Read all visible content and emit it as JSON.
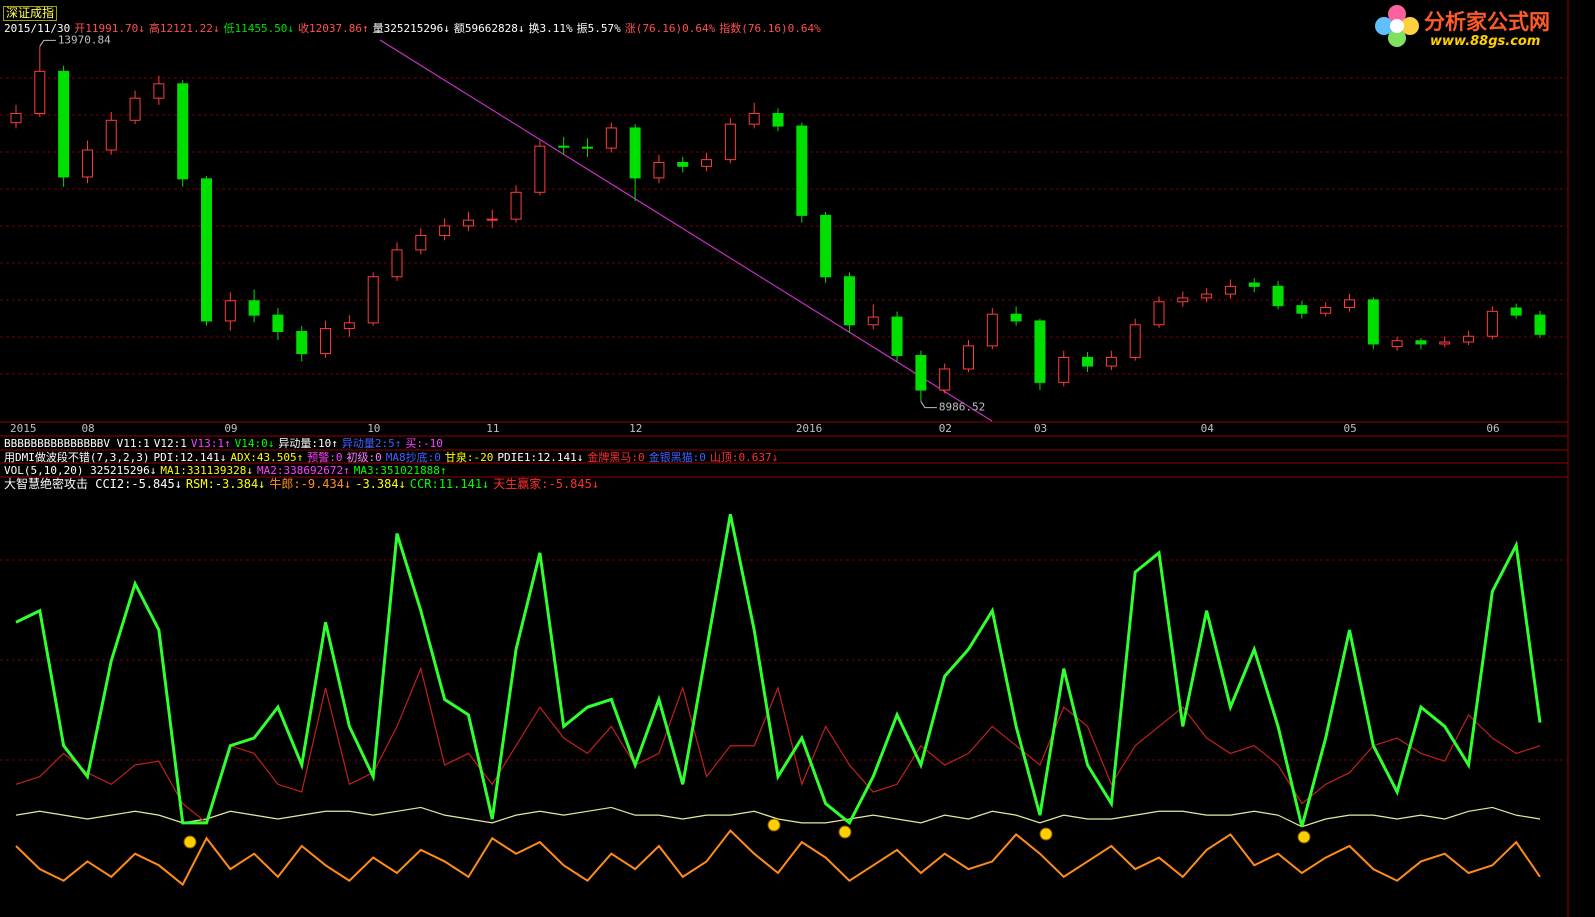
{
  "header": {
    "title": "深证成指",
    "date": "2015/11/30",
    "info": [
      {
        "text": "开11991.70↓",
        "color": "#ff5050"
      },
      {
        "text": "高12121.22↓",
        "color": "#ff5050"
      },
      {
        "text": "低11455.50↓",
        "color": "#00e000"
      },
      {
        "text": "收12037.86↑",
        "color": "#ff5050"
      },
      {
        "text": "量325215296↓",
        "color": "#ffffff"
      },
      {
        "text": "额59662828↓",
        "color": "#ffffff"
      },
      {
        "text": "换3.11%",
        "color": "#ffffff"
      },
      {
        "text": "振5.57%",
        "color": "#ffffff"
      },
      {
        "text": "涨(76.16)0.64%",
        "color": "#ff5050"
      },
      {
        "text": "指数(76.16)0.64%",
        "color": "#ff5050"
      }
    ]
  },
  "logo": {
    "name": "分析家公式网",
    "url": "www.88gs.com"
  },
  "indicator_rows": [
    [
      {
        "text": "BBBBBBBBBBBBBBBV V11:1",
        "color": "#ffffff"
      },
      {
        "text": "V12:1",
        "color": "#ffffff"
      },
      {
        "text": "V13:1↑",
        "color": "#ff40ff"
      },
      {
        "text": "V14:0↓",
        "color": "#00ff00"
      },
      {
        "text": "异动量:10↑",
        "color": "#ffffff"
      },
      {
        "text": "异动量2:5↑",
        "color": "#4060ff"
      },
      {
        "text": "买:-10",
        "color": "#ff40ff"
      }
    ],
    [
      {
        "text": "用DMI做波段不错(7,3,2,3)",
        "color": "#ffffff"
      },
      {
        "text": "PDI:12.141↓",
        "color": "#ffffff"
      },
      {
        "text": "ADX:43.505↑",
        "color": "#ffff00"
      },
      {
        "text": "预警:0",
        "color": "#ff40ff"
      },
      {
        "text": "初级:0",
        "color": "#ff80ff"
      },
      {
        "text": "MA8抄底:0",
        "color": "#4060ff"
      },
      {
        "text": "甘泉:-20",
        "color": "#ffff00"
      },
      {
        "text": "PDIE1:12.141↓",
        "color": "#ffffff"
      },
      {
        "text": "金牌黑马:0",
        "color": "#ff3030"
      },
      {
        "text": "金银黑猫:0",
        "color": "#4060ff"
      },
      {
        "text": "山顶:0.637↓",
        "color": "#ff3030"
      }
    ],
    [
      {
        "text": "VOL(5,10,20) 325215296↓",
        "color": "#ffffff"
      },
      {
        "text": "MA1:331139328↓",
        "color": "#ffff00"
      },
      {
        "text": "MA2:338692672↑",
        "color": "#ff40ff"
      },
      {
        "text": "MA3:351021888↑",
        "color": "#00ff00"
      }
    ],
    [
      {
        "text": "大智慧绝密攻击 CCI2:-5.845↓",
        "color": "#ffffff"
      },
      {
        "text": "RSM:-3.384↓",
        "color": "#ffff00"
      },
      {
        "text": "牛郎:-9.434↓",
        "color": "#ff9020"
      },
      {
        "text": "-3.384↓",
        "color": "#ffff00"
      },
      {
        "text": "CCR:11.141↓",
        "color": "#00ff00"
      },
      {
        "text": "天生赢家:-5.845↓",
        "color": "#ff3030"
      }
    ]
  ],
  "chart_data": [
    {
      "type": "candlestick",
      "up_color": "#ff3c3c",
      "down_color": "#00e000",
      "ylim": [
        8700,
        14200
      ],
      "categories": [
        "2015",
        null,
        null,
        "08",
        null,
        null,
        null,
        null,
        null,
        "09",
        null,
        null,
        null,
        null,
        null,
        "10",
        null,
        null,
        null,
        null,
        "11",
        null,
        null,
        null,
        null,
        null,
        "12",
        null,
        null,
        null,
        null,
        null,
        null,
        "2016",
        null,
        null,
        null,
        null,
        null,
        "02",
        null,
        null,
        null,
        "03",
        null,
        null,
        null,
        null,
        null,
        null,
        "04",
        null,
        null,
        null,
        null,
        null,
        "05",
        null,
        null,
        null,
        null,
        null,
        "06",
        null,
        null
      ],
      "open": [
        12900,
        13028,
        13620,
        12138,
        12516,
        12933,
        13243,
        13445,
        12112,
        10118,
        10401,
        10199,
        9970,
        9660,
        10011,
        10091,
        10738,
        11115,
        11317,
        11451,
        11532,
        11546,
        11923,
        12570,
        12556,
        12543,
        12826,
        12125,
        12341,
        12287,
        12381,
        12879,
        13028,
        12852,
        11599,
        10738,
        10064,
        10172,
        9633,
        9148,
        9444,
        9768,
        10212,
        10118,
        9256,
        9606,
        9485,
        9606,
        10064,
        10387,
        10441,
        10495,
        10650,
        10603,
        10333,
        10226,
        10306,
        10414,
        9760,
        9840,
        9795,
        9822,
        9903,
        10300,
        10200
      ],
      "high": [
        13150,
        13970.84,
        13700,
        12650,
        13050,
        13350,
        13560,
        13500,
        12150,
        10520,
        10560,
        10300,
        10050,
        10120,
        10200,
        10800,
        11220,
        11420,
        11560,
        11650,
        11680,
        12020,
        12650,
        12700,
        12680,
        12900,
        12880,
        12450,
        12420,
        12480,
        12960,
        13180,
        13100,
        12900,
        11650,
        10800,
        10350,
        10250,
        9700,
        9520,
        9850,
        10300,
        10320,
        10150,
        9700,
        9680,
        9700,
        10150,
        10460,
        10530,
        10580,
        10700,
        10720,
        10680,
        10400,
        10380,
        10500,
        10450,
        9900,
        9880,
        9900,
        9980,
        10320,
        10360,
        10260
      ],
      "low": [
        12820,
        12980,
        12000,
        12050,
        12450,
        12880,
        13150,
        12000,
        10050,
        9980,
        10100,
        9850,
        9550,
        9600,
        9900,
        10050,
        10680,
        11050,
        11250,
        11380,
        11420,
        11500,
        11880,
        12450,
        12420,
        12480,
        11800,
        12050,
        12200,
        12220,
        12330,
        12820,
        12780,
        11500,
        10650,
        9950,
        10000,
        9550,
        8986.52,
        9100,
        9400,
        9720,
        10050,
        9150,
        9200,
        9400,
        9430,
        9560,
        10020,
        10320,
        10380,
        10430,
        10520,
        10280,
        10150,
        10180,
        10250,
        9720,
        9700,
        9720,
        9750,
        9780,
        9860,
        10150,
        9880
      ],
      "close": [
        13028,
        13620,
        12138,
        12516,
        12933,
        13243,
        13445,
        12112,
        10118,
        10401,
        10199,
        9970,
        9660,
        10011,
        10091,
        10738,
        11115,
        11317,
        11451,
        11532,
        11546,
        11923,
        12570,
        12556,
        12543,
        12826,
        12125,
        12341,
        12287,
        12381,
        12879,
        13028,
        12852,
        11599,
        10738,
        10064,
        10172,
        9633,
        9148,
        9444,
        9768,
        10212,
        10118,
        9256,
        9606,
        9485,
        9606,
        10064,
        10387,
        10441,
        10495,
        10603,
        10603,
        10333,
        10226,
        10306,
        10414,
        9795,
        9840,
        9795,
        9822,
        9903,
        10253,
        10200,
        9930
      ],
      "annotations": [
        {
          "value": 13970.84,
          "label": "13970.84"
        },
        {
          "value": 8986.52,
          "label": "8986.52"
        }
      ]
    },
    {
      "type": "line",
      "ylim": [
        0,
        105
      ],
      "series": [
        {
          "color": "#30ff30",
          "values": [
            72,
            75,
            40,
            32,
            62,
            82,
            70,
            20,
            20,
            40,
            42,
            50,
            35,
            72,
            45,
            32,
            95,
            75,
            52,
            48,
            21,
            65,
            90,
            45,
            50,
            52,
            35,
            52,
            30,
            65,
            100,
            70,
            32,
            42,
            25,
            20,
            32,
            48,
            35,
            58,
            65,
            75,
            45,
            22,
            60,
            35,
            25,
            85,
            90,
            45,
            75,
            50,
            65,
            45,
            19,
            42,
            70,
            40,
            28,
            50,
            45,
            35,
            80,
            92,
            46
          ]
        },
        {
          "color": "#c02020",
          "values": [
            30,
            32,
            38,
            33,
            30,
            35,
            36,
            25,
            20,
            40,
            38,
            30,
            28,
            55,
            30,
            33,
            45,
            60,
            35,
            38,
            30,
            40,
            50,
            42,
            38,
            45,
            35,
            38,
            55,
            32,
            40,
            40,
            55,
            30,
            45,
            35,
            28,
            30,
            40,
            35,
            38,
            45,
            40,
            35,
            50,
            45,
            30,
            40,
            45,
            50,
            42,
            38,
            40,
            35,
            25,
            30,
            33,
            40,
            42,
            38,
            36,
            48,
            42,
            38,
            40
          ]
        },
        {
          "color": "#e8e8a0",
          "values": [
            22,
            23,
            22,
            21,
            22,
            23,
            22,
            20,
            21,
            23,
            22,
            21,
            22,
            23,
            23,
            22,
            23,
            24,
            22,
            21,
            20,
            22,
            23,
            22,
            23,
            24,
            22,
            22,
            21,
            22,
            22,
            23,
            21,
            20,
            20,
            21,
            22,
            21,
            20,
            22,
            21,
            23,
            22,
            20,
            22,
            21,
            21,
            22,
            23,
            23,
            22,
            22,
            23,
            22,
            19,
            21,
            22,
            22,
            21,
            22,
            21,
            23,
            24,
            22,
            21
          ]
        },
        {
          "color": "#ff8c1a",
          "values": [
            14,
            8,
            5,
            10,
            6,
            12,
            9,
            4,
            16,
            8,
            12,
            6,
            14,
            9,
            5,
            11,
            7,
            13,
            10,
            6,
            16,
            12,
            15,
            9,
            5,
            12,
            8,
            14,
            6,
            10,
            18,
            12,
            7,
            15,
            11,
            5,
            9,
            13,
            7,
            12,
            8,
            10,
            17,
            12,
            6,
            10,
            14,
            8,
            11,
            6,
            13,
            17,
            9,
            12,
            7,
            11,
            14,
            8,
            5,
            10,
            12,
            7,
            9,
            15,
            6
          ]
        }
      ]
    }
  ]
}
